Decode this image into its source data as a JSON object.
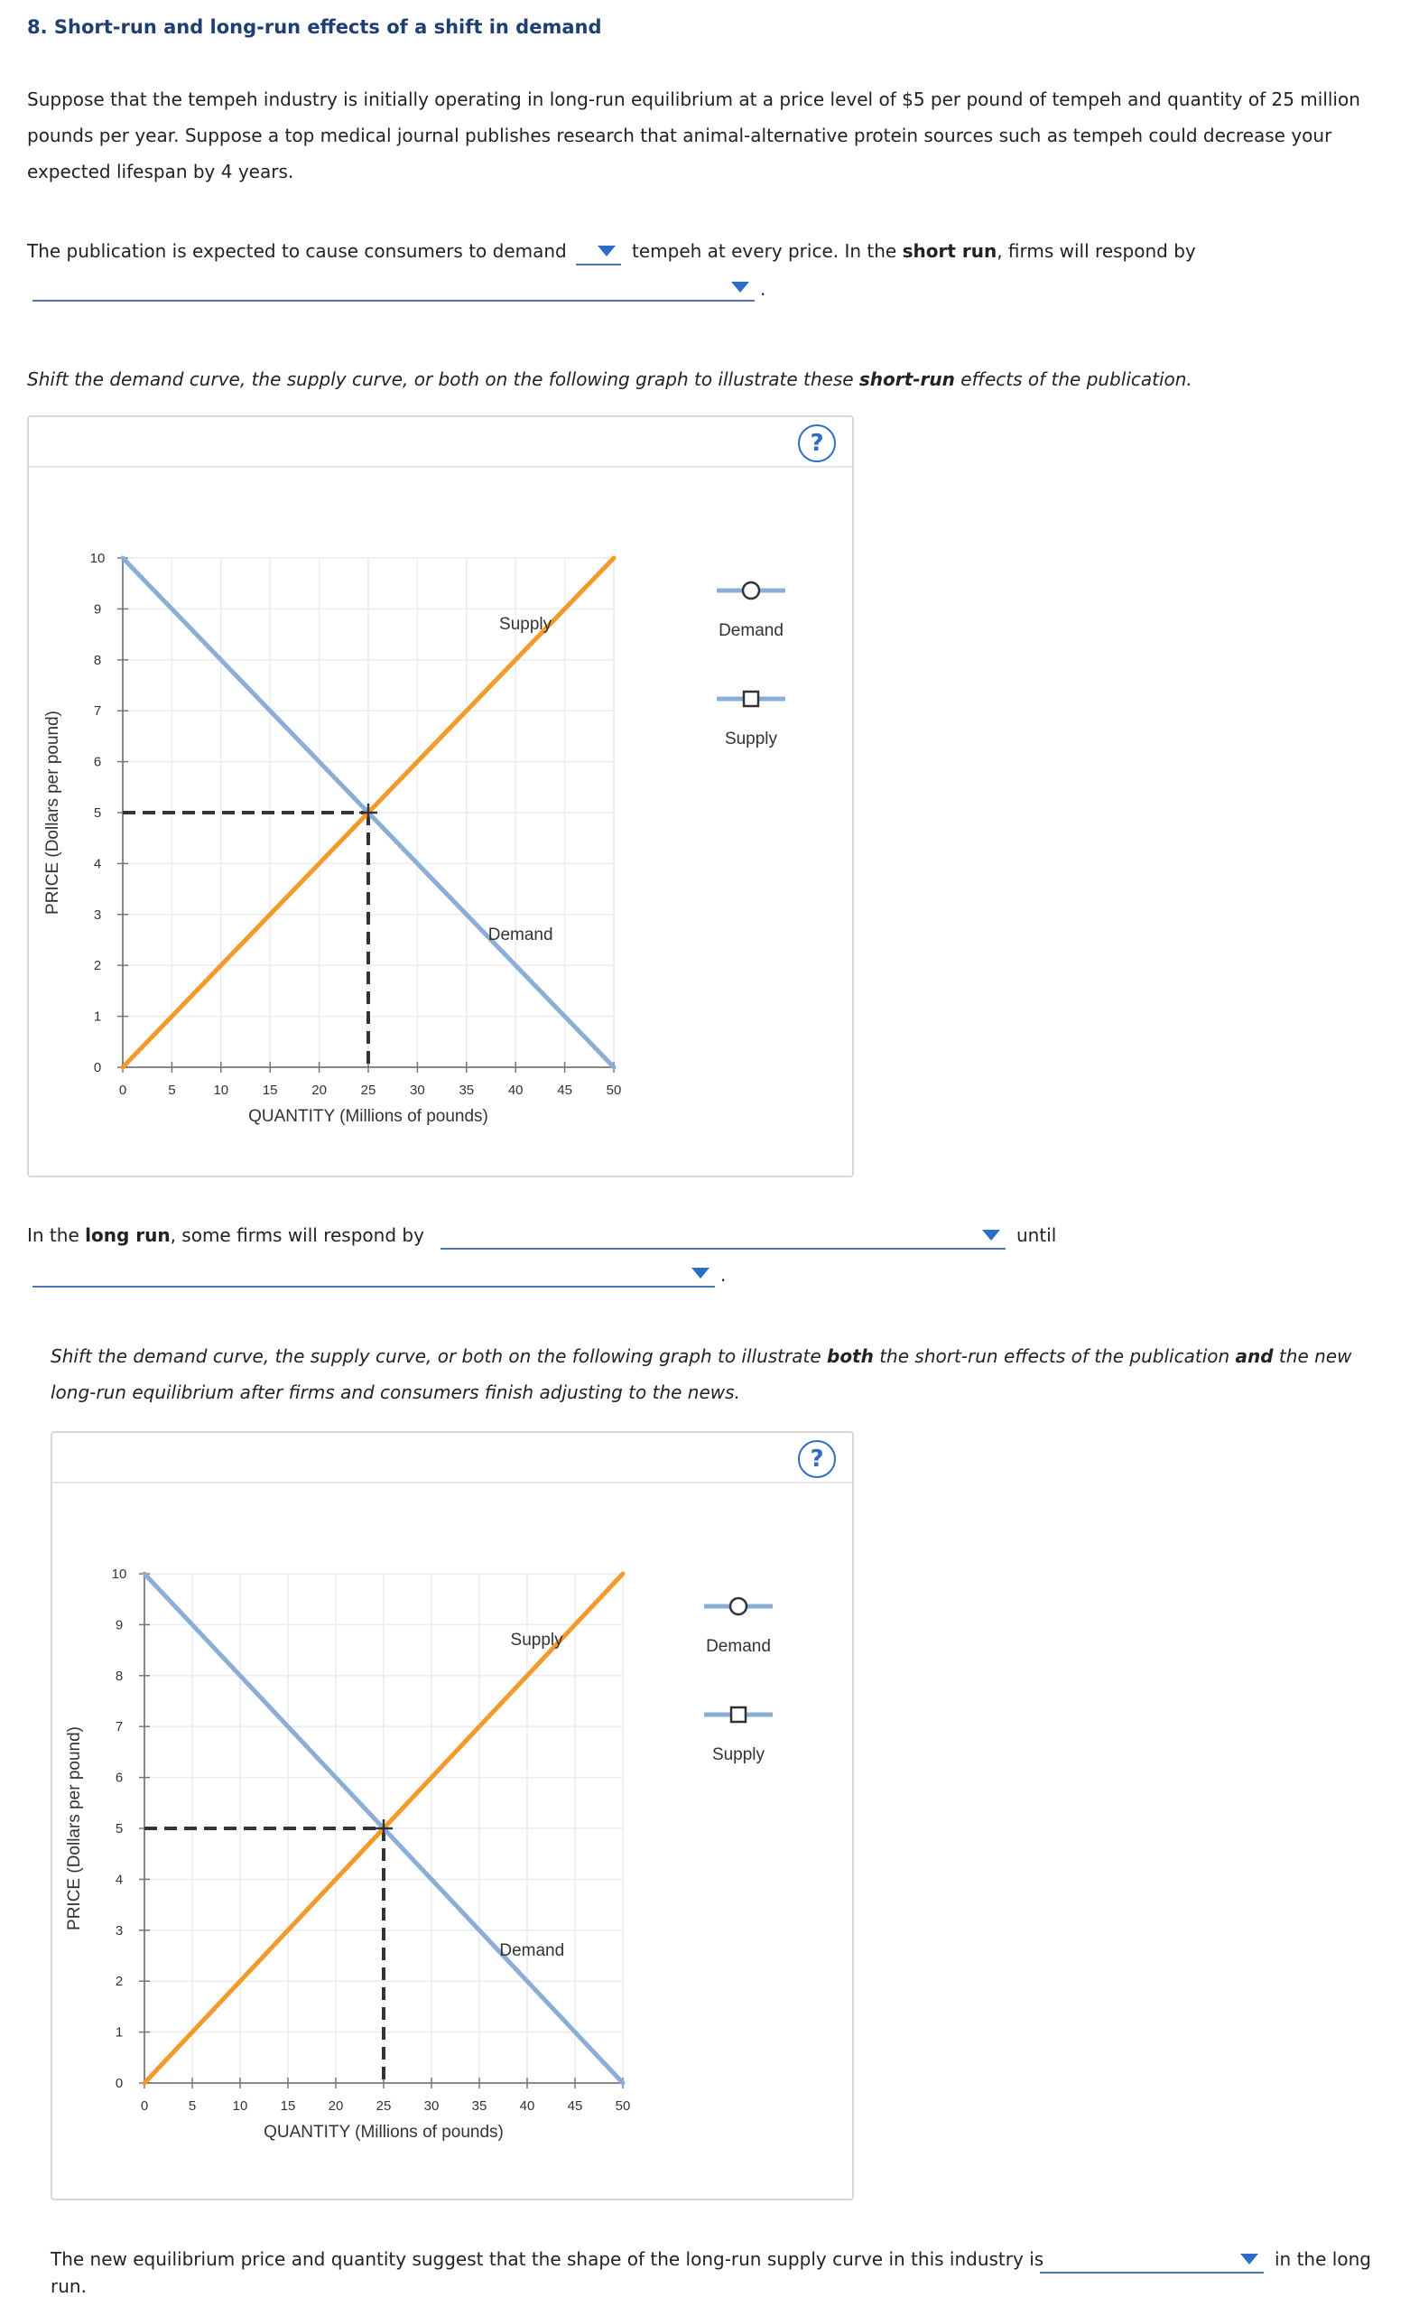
{
  "question": {
    "title": "8. Short-run and long-run effects of a shift in demand",
    "intro": "Suppose that the tempeh industry is initially operating in long-run equilibrium at a price level of $5 per pound of tempeh and quantity of 25 million pounds per year. Suppose a top medical journal publishes research that animal-alternative protein sources such as tempeh could decrease your expected lifespan by 4 years.",
    "q1_part1": "The publication is expected to cause consumers to demand",
    "q1_part2": "tempeh at every price. In the",
    "q1_bold": "short run",
    "q1_part3": ", firms will respond by",
    "q1_end": ".",
    "instr1_a": "Shift the demand curve, the supply curve, or both on the following graph to illustrate these ",
    "instr1_bold": "short-run",
    "instr1_b": " effects of the publication.",
    "q2_a": "In the ",
    "q2_bold": "long run",
    "q2_b": ", some firms will respond by",
    "q2_until": "until",
    "q2_end": ".",
    "instr2_a": "Shift the demand curve, the supply curve, or both on the following graph to illustrate ",
    "instr2_bold1": "both",
    "instr2_b": " the short-run effects of the publication ",
    "instr2_bold2": "and",
    "instr2_c": " the new long-run equilibrium after firms and consumers finish adjusting to the news.",
    "q3_a": "The new equilibrium price and quantity suggest that the shape of the long-run supply curve in this industry is",
    "q3_b": "in the long",
    "q3_c": "run."
  },
  "dropdowns": {
    "demand_change": "",
    "short_run_response": "",
    "long_run_response": "",
    "long_run_until": "",
    "lr_supply_shape": ""
  },
  "help_label": "?",
  "graph": {
    "xlabel": "QUANTITY (Millions of pounds)",
    "ylabel": "PRICE (Dollars per pound)",
    "x_ticks": [
      "0",
      "5",
      "10",
      "15",
      "20",
      "25",
      "30",
      "35",
      "40",
      "45",
      "50"
    ],
    "y_ticks": [
      "0",
      "1",
      "2",
      "3",
      "4",
      "5",
      "6",
      "7",
      "8",
      "9",
      "10"
    ],
    "supply_label": "Supply",
    "demand_label": "Demand",
    "legend_demand": "Demand",
    "legend_supply": "Supply"
  },
  "chart_data": [
    {
      "type": "line",
      "xlabel": "QUANTITY (Millions of pounds)",
      "ylabel": "PRICE (Dollars per pound)",
      "xlim": [
        0,
        50
      ],
      "ylim": [
        0,
        10
      ],
      "grid": true,
      "series": [
        {
          "name": "Demand",
          "color": "#8aaed6",
          "x": [
            0,
            50
          ],
          "y": [
            10,
            0
          ]
        },
        {
          "name": "Supply",
          "color": "#f39a2b",
          "x": [
            0,
            50
          ],
          "y": [
            0,
            10
          ]
        }
      ],
      "equilibrium": {
        "x": 25,
        "y": 5
      }
    },
    {
      "type": "line",
      "xlabel": "QUANTITY (Millions of pounds)",
      "ylabel": "PRICE (Dollars per pound)",
      "xlim": [
        0,
        50
      ],
      "ylim": [
        0,
        10
      ],
      "grid": true,
      "series": [
        {
          "name": "Demand",
          "color": "#8aaed6",
          "x": [
            0,
            50
          ],
          "y": [
            10,
            0
          ]
        },
        {
          "name": "Supply",
          "color": "#f39a2b",
          "x": [
            0,
            50
          ],
          "y": [
            0,
            10
          ]
        }
      ],
      "equilibrium": {
        "x": 25,
        "y": 5
      }
    }
  ],
  "colors": {
    "demand": "#8aaed6",
    "supply": "#f39a2b",
    "accent": "#2c6ec7",
    "title": "#1f3f73"
  }
}
